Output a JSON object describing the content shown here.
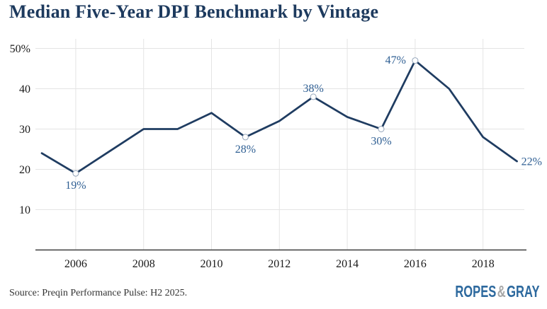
{
  "title": "Median Five-Year DPI Benchmark by Vintage",
  "source_note": "Source: Preqin Performance Pulse: H2 2025.",
  "logo": {
    "ropes": "ROPES",
    "ampersand": "&",
    "gray": "GRAY"
  },
  "colors": {
    "background": "#ffffff",
    "title": "#1d3a5e",
    "line": "#1f3c61",
    "point_label": "#2f5f93",
    "marker_stroke": "#94a5ba",
    "marker_fill": "#ffffff",
    "gridline": "#e4e4e4",
    "axis": "#3f3f3f",
    "tick_label": "#1a1a1a",
    "source": "#333333",
    "logo_blue": "#2d699e",
    "logo_gray": "#a7a7a7"
  },
  "chart_data": {
    "type": "line",
    "title": "Median Five-Year DPI Benchmark by Vintage",
    "series_name": "Median five-year DPI benchmark",
    "x": [
      2005,
      2006,
      2007,
      2008,
      2009,
      2010,
      2011,
      2012,
      2013,
      2014,
      2015,
      2016,
      2017,
      2018,
      2019
    ],
    "values": [
      24,
      19,
      24.5,
      30,
      30,
      34,
      28,
      32,
      38,
      33,
      30,
      47,
      40,
      28,
      22
    ],
    "xlabel": "",
    "ylabel": "",
    "ylim": [
      0,
      52
    ],
    "grid": true,
    "legend": "none",
    "x_ticks": [
      2006,
      2008,
      2010,
      2012,
      2014,
      2016,
      2018
    ],
    "y_ticks": [
      {
        "value": 50,
        "label": "50%"
      },
      {
        "value": 40,
        "label": "40"
      },
      {
        "value": 30,
        "label": "30"
      },
      {
        "value": 20,
        "label": "20"
      },
      {
        "value": 10,
        "label": "10"
      }
    ],
    "annotations": [
      {
        "year": 2006,
        "value": 19,
        "label": "19%",
        "placement": "below",
        "marker": true
      },
      {
        "year": 2011,
        "value": 28,
        "label": "28%",
        "placement": "below",
        "marker": true
      },
      {
        "year": 2013,
        "value": 38,
        "label": "38%",
        "placement": "above",
        "marker": true
      },
      {
        "year": 2015,
        "value": 30,
        "label": "30%",
        "placement": "below",
        "marker": true
      },
      {
        "year": 2016,
        "value": 47,
        "label": "47%",
        "placement": "left",
        "marker": true
      },
      {
        "year": 2019,
        "value": 22,
        "label": "22%",
        "placement": "right",
        "marker": false
      }
    ]
  }
}
